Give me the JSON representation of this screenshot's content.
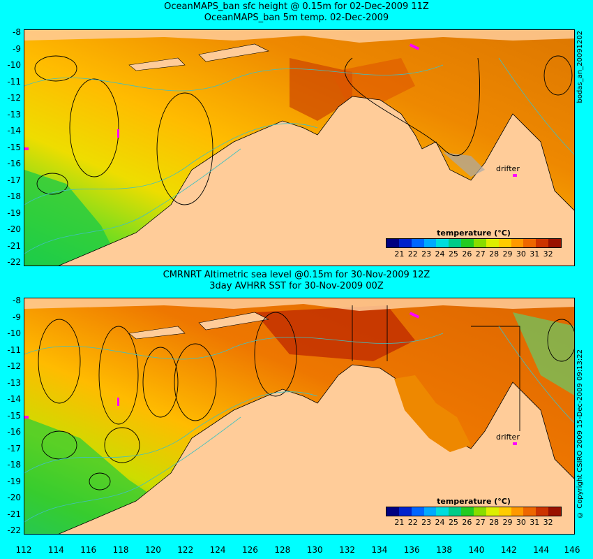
{
  "top_panel": {
    "title_line1": "OceanMAPS_ban sfc height @ 0.15m for 02-Dec-2009 11Z",
    "title_line2": "OceanMAPS_ban 5m temp. 02-Dec-2009",
    "side_label": "bodas_an_20091202",
    "drifter_label": "drifter"
  },
  "bottom_panel": {
    "title_line1": "CMRNRT Altimetric sea level  @0.15m  for 30-Nov-2009 12Z",
    "title_line2": "3day AVHRR SST for 30-Nov-2009 00Z",
    "side_label": "© Copyright CSIRO 2009   15-Dec-2009 09:13:22",
    "drifter_label": "drifter"
  },
  "colorbar": {
    "title": "temperature (°C)",
    "ticks": [
      "21",
      "22",
      "23",
      "24",
      "25",
      "26",
      "27",
      "28",
      "29",
      "30",
      "31",
      "32"
    ],
    "colors": [
      "#000080",
      "#0022cc",
      "#0066ff",
      "#00aaff",
      "#00dddd",
      "#00cc88",
      "#22cc22",
      "#88dd00",
      "#ddee00",
      "#ffcc00",
      "#ff9900",
      "#ee6600",
      "#cc3300",
      "#991100"
    ]
  },
  "axes": {
    "y_ticks": [
      "-8",
      "-9",
      "-10",
      "-11",
      "-12",
      "-13",
      "-14",
      "-15",
      "-16",
      "-17",
      "-18",
      "-19",
      "-20",
      "-21",
      "-22"
    ],
    "x_ticks": [
      "112",
      "114",
      "116",
      "118",
      "120",
      "122",
      "124",
      "126",
      "128",
      "130",
      "132",
      "134",
      "136",
      "138",
      "140",
      "142",
      "144",
      "146"
    ]
  },
  "colors": {
    "background": "#00ffff",
    "land": "#ffcc99",
    "contour_sea_level": "#000000",
    "contour_bathymetry": "#40c0c0",
    "drifter": "#ff00ff"
  }
}
